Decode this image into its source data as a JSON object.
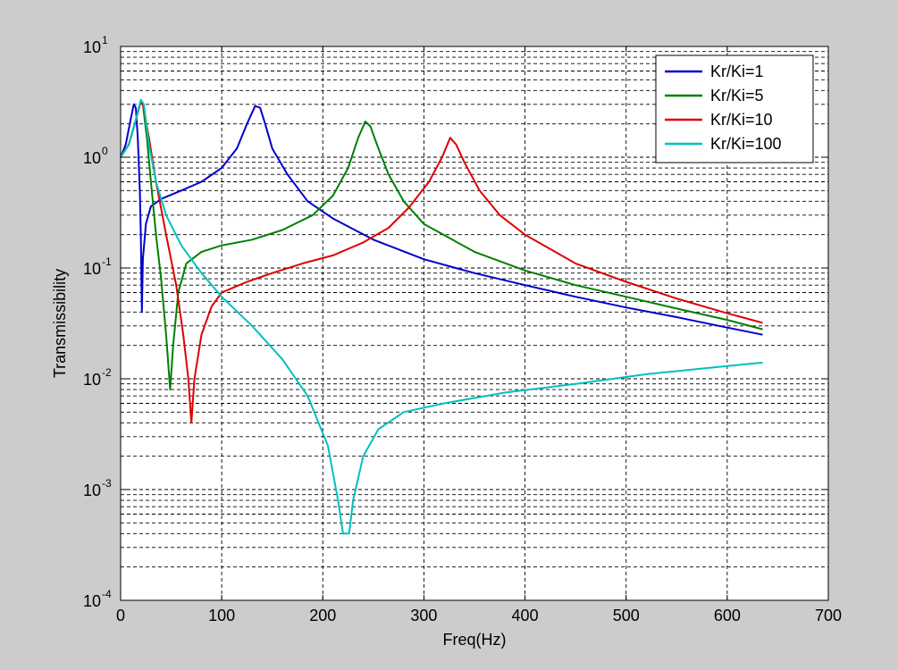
{
  "chart_data": {
    "type": "line",
    "title": "",
    "xlabel": "Freq(Hz)",
    "ylabel": "Transmissibility",
    "xlim": [
      0,
      700
    ],
    "ylim": [
      0.0001,
      10
    ],
    "yscale": "log",
    "grid": true,
    "legend_position": "top-right",
    "x_ticks": [
      0,
      100,
      200,
      300,
      400,
      500,
      600,
      700
    ],
    "x_tick_labels": [
      "0",
      "100",
      "200",
      "300",
      "400",
      "500",
      "600",
      "700"
    ],
    "y_ticks": [
      0.0001,
      0.001,
      0.01,
      0.1,
      1,
      10
    ],
    "y_tick_labels": [
      {
        "base": "10",
        "exp": "-4"
      },
      {
        "base": "10",
        "exp": "-3"
      },
      {
        "base": "10",
        "exp": "-2"
      },
      {
        "base": "10",
        "exp": "-1"
      },
      {
        "base": "10",
        "exp": "0"
      },
      {
        "base": "10",
        "exp": "1"
      }
    ],
    "series": [
      {
        "name": "Kr/Ki=1",
        "color": "#0000cc",
        "points": [
          [
            0,
            1.0
          ],
          [
            5,
            1.3
          ],
          [
            10,
            2.2
          ],
          [
            13,
            3.0
          ],
          [
            15,
            2.8
          ],
          [
            17,
            1.5
          ],
          [
            19,
            0.5
          ],
          [
            20,
            0.2
          ],
          [
            21,
            0.04
          ],
          [
            22,
            0.12
          ],
          [
            25,
            0.25
          ],
          [
            30,
            0.36
          ],
          [
            40,
            0.42
          ],
          [
            60,
            0.5
          ],
          [
            80,
            0.6
          ],
          [
            100,
            0.8
          ],
          [
            115,
            1.2
          ],
          [
            125,
            2.0
          ],
          [
            133,
            2.9
          ],
          [
            138,
            2.8
          ],
          [
            143,
            2.0
          ],
          [
            150,
            1.2
          ],
          [
            165,
            0.7
          ],
          [
            185,
            0.4
          ],
          [
            210,
            0.28
          ],
          [
            250,
            0.18
          ],
          [
            300,
            0.12
          ],
          [
            350,
            0.09
          ],
          [
            400,
            0.07
          ],
          [
            450,
            0.055
          ],
          [
            500,
            0.044
          ],
          [
            550,
            0.036
          ],
          [
            600,
            0.029
          ],
          [
            635,
            0.025
          ]
        ]
      },
      {
        "name": "Kr/Ki=5",
        "color": "#008000",
        "points": [
          [
            0,
            1.0
          ],
          [
            8,
            1.3
          ],
          [
            14,
            2.0
          ],
          [
            20,
            3.2
          ],
          [
            22,
            3.0
          ],
          [
            26,
            1.5
          ],
          [
            30,
            0.6
          ],
          [
            35,
            0.2
          ],
          [
            40,
            0.08
          ],
          [
            45,
            0.025
          ],
          [
            49,
            0.008
          ],
          [
            52,
            0.02
          ],
          [
            57,
            0.06
          ],
          [
            65,
            0.11
          ],
          [
            80,
            0.14
          ],
          [
            100,
            0.16
          ],
          [
            130,
            0.18
          ],
          [
            160,
            0.22
          ],
          [
            190,
            0.3
          ],
          [
            210,
            0.45
          ],
          [
            225,
            0.8
          ],
          [
            235,
            1.5
          ],
          [
            242,
            2.1
          ],
          [
            247,
            1.9
          ],
          [
            255,
            1.2
          ],
          [
            265,
            0.7
          ],
          [
            280,
            0.4
          ],
          [
            300,
            0.25
          ],
          [
            350,
            0.14
          ],
          [
            400,
            0.095
          ],
          [
            450,
            0.07
          ],
          [
            500,
            0.055
          ],
          [
            550,
            0.043
          ],
          [
            600,
            0.034
          ],
          [
            635,
            0.028
          ]
        ]
      },
      {
        "name": "Kr/Ki=10",
        "color": "#dd0000",
        "points": [
          [
            0,
            1.0
          ],
          [
            8,
            1.3
          ],
          [
            14,
            2.0
          ],
          [
            20,
            3.2
          ],
          [
            22,
            3.0
          ],
          [
            28,
            1.5
          ],
          [
            35,
            0.6
          ],
          [
            45,
            0.2
          ],
          [
            55,
            0.07
          ],
          [
            62,
            0.025
          ],
          [
            67,
            0.01
          ],
          [
            70,
            0.004
          ],
          [
            73,
            0.01
          ],
          [
            80,
            0.025
          ],
          [
            90,
            0.045
          ],
          [
            100,
            0.06
          ],
          [
            125,
            0.075
          ],
          [
            150,
            0.09
          ],
          [
            180,
            0.11
          ],
          [
            210,
            0.13
          ],
          [
            240,
            0.17
          ],
          [
            265,
            0.23
          ],
          [
            285,
            0.35
          ],
          [
            305,
            0.6
          ],
          [
            318,
            1.0
          ],
          [
            326,
            1.5
          ],
          [
            332,
            1.3
          ],
          [
            340,
            0.9
          ],
          [
            355,
            0.5
          ],
          [
            375,
            0.3
          ],
          [
            400,
            0.2
          ],
          [
            450,
            0.11
          ],
          [
            500,
            0.075
          ],
          [
            550,
            0.053
          ],
          [
            600,
            0.039
          ],
          [
            635,
            0.032
          ]
        ]
      },
      {
        "name": "Kr/Ki=100",
        "color": "#00c0c0",
        "points": [
          [
            0,
            1.0
          ],
          [
            8,
            1.3
          ],
          [
            14,
            2.0
          ],
          [
            20,
            3.3
          ],
          [
            23,
            3.0
          ],
          [
            28,
            1.3
          ],
          [
            35,
            0.6
          ],
          [
            45,
            0.3
          ],
          [
            60,
            0.16
          ],
          [
            80,
            0.09
          ],
          [
            100,
            0.055
          ],
          [
            130,
            0.03
          ],
          [
            160,
            0.015
          ],
          [
            185,
            0.007
          ],
          [
            205,
            0.0025
          ],
          [
            215,
            0.0008
          ],
          [
            220,
            0.0004
          ],
          [
            226,
            0.0004
          ],
          [
            230,
            0.0008
          ],
          [
            240,
            0.002
          ],
          [
            255,
            0.0035
          ],
          [
            280,
            0.005
          ],
          [
            320,
            0.006
          ],
          [
            380,
            0.0075
          ],
          [
            450,
            0.009
          ],
          [
            520,
            0.011
          ],
          [
            580,
            0.0125
          ],
          [
            635,
            0.014
          ]
        ]
      }
    ]
  }
}
